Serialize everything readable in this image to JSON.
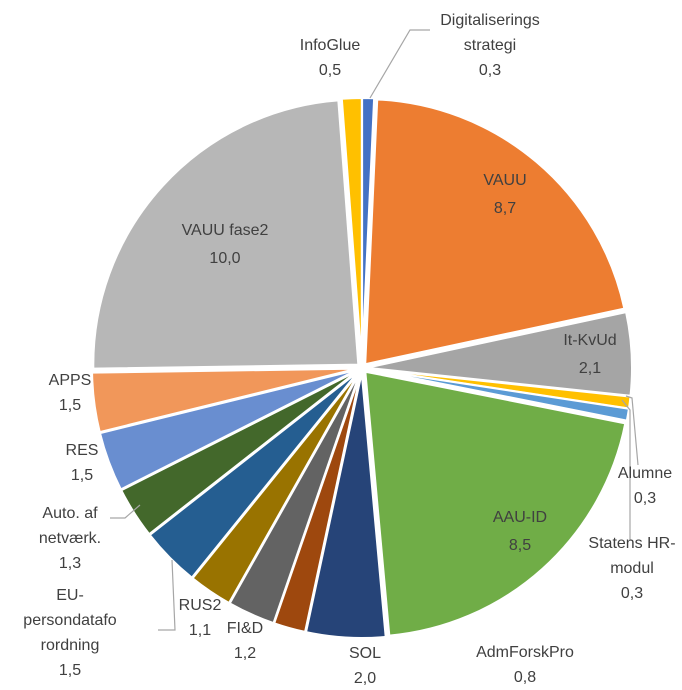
{
  "chart_data": {
    "type": "pie",
    "categories": [
      "Digitaliserings\nstrategi",
      "VAUU",
      "It-KvUd",
      "Alumne",
      "Statens HR-\nmodul",
      "AAU-ID",
      "SOL",
      "AdmForskPro",
      "FI&D",
      "RUS2",
      "EU-\npersondatafo\nrordning",
      "Auto. af\nnetværk.",
      "RES",
      "APPS",
      "VAUU fase2",
      "InfoGlue"
    ],
    "values": [
      0.3,
      8.7,
      2.1,
      0.3,
      0.3,
      8.5,
      2.0,
      0.8,
      1.2,
      1.1,
      1.5,
      1.3,
      1.5,
      1.5,
      10.0,
      0.5
    ],
    "value_labels": [
      "0,3",
      "8,7",
      "2,1",
      "0,3",
      "0,3",
      "8,5",
      "2,0",
      "0,8",
      "1,2",
      "1,1",
      "1,5",
      "1,3",
      "1,5",
      "1,5",
      "10,0",
      "0,5"
    ],
    "colors": [
      "#4472c4",
      "#ed7d31",
      "#a5a5a5",
      "#ffc000",
      "#5b9bd5",
      "#70ad47",
      "#264478",
      "#9e480e",
      "#636363",
      "#997300",
      "#255e91",
      "#43682b",
      "#698ed0",
      "#f1975a",
      "#b7b7b7",
      "#ffc000"
    ]
  }
}
